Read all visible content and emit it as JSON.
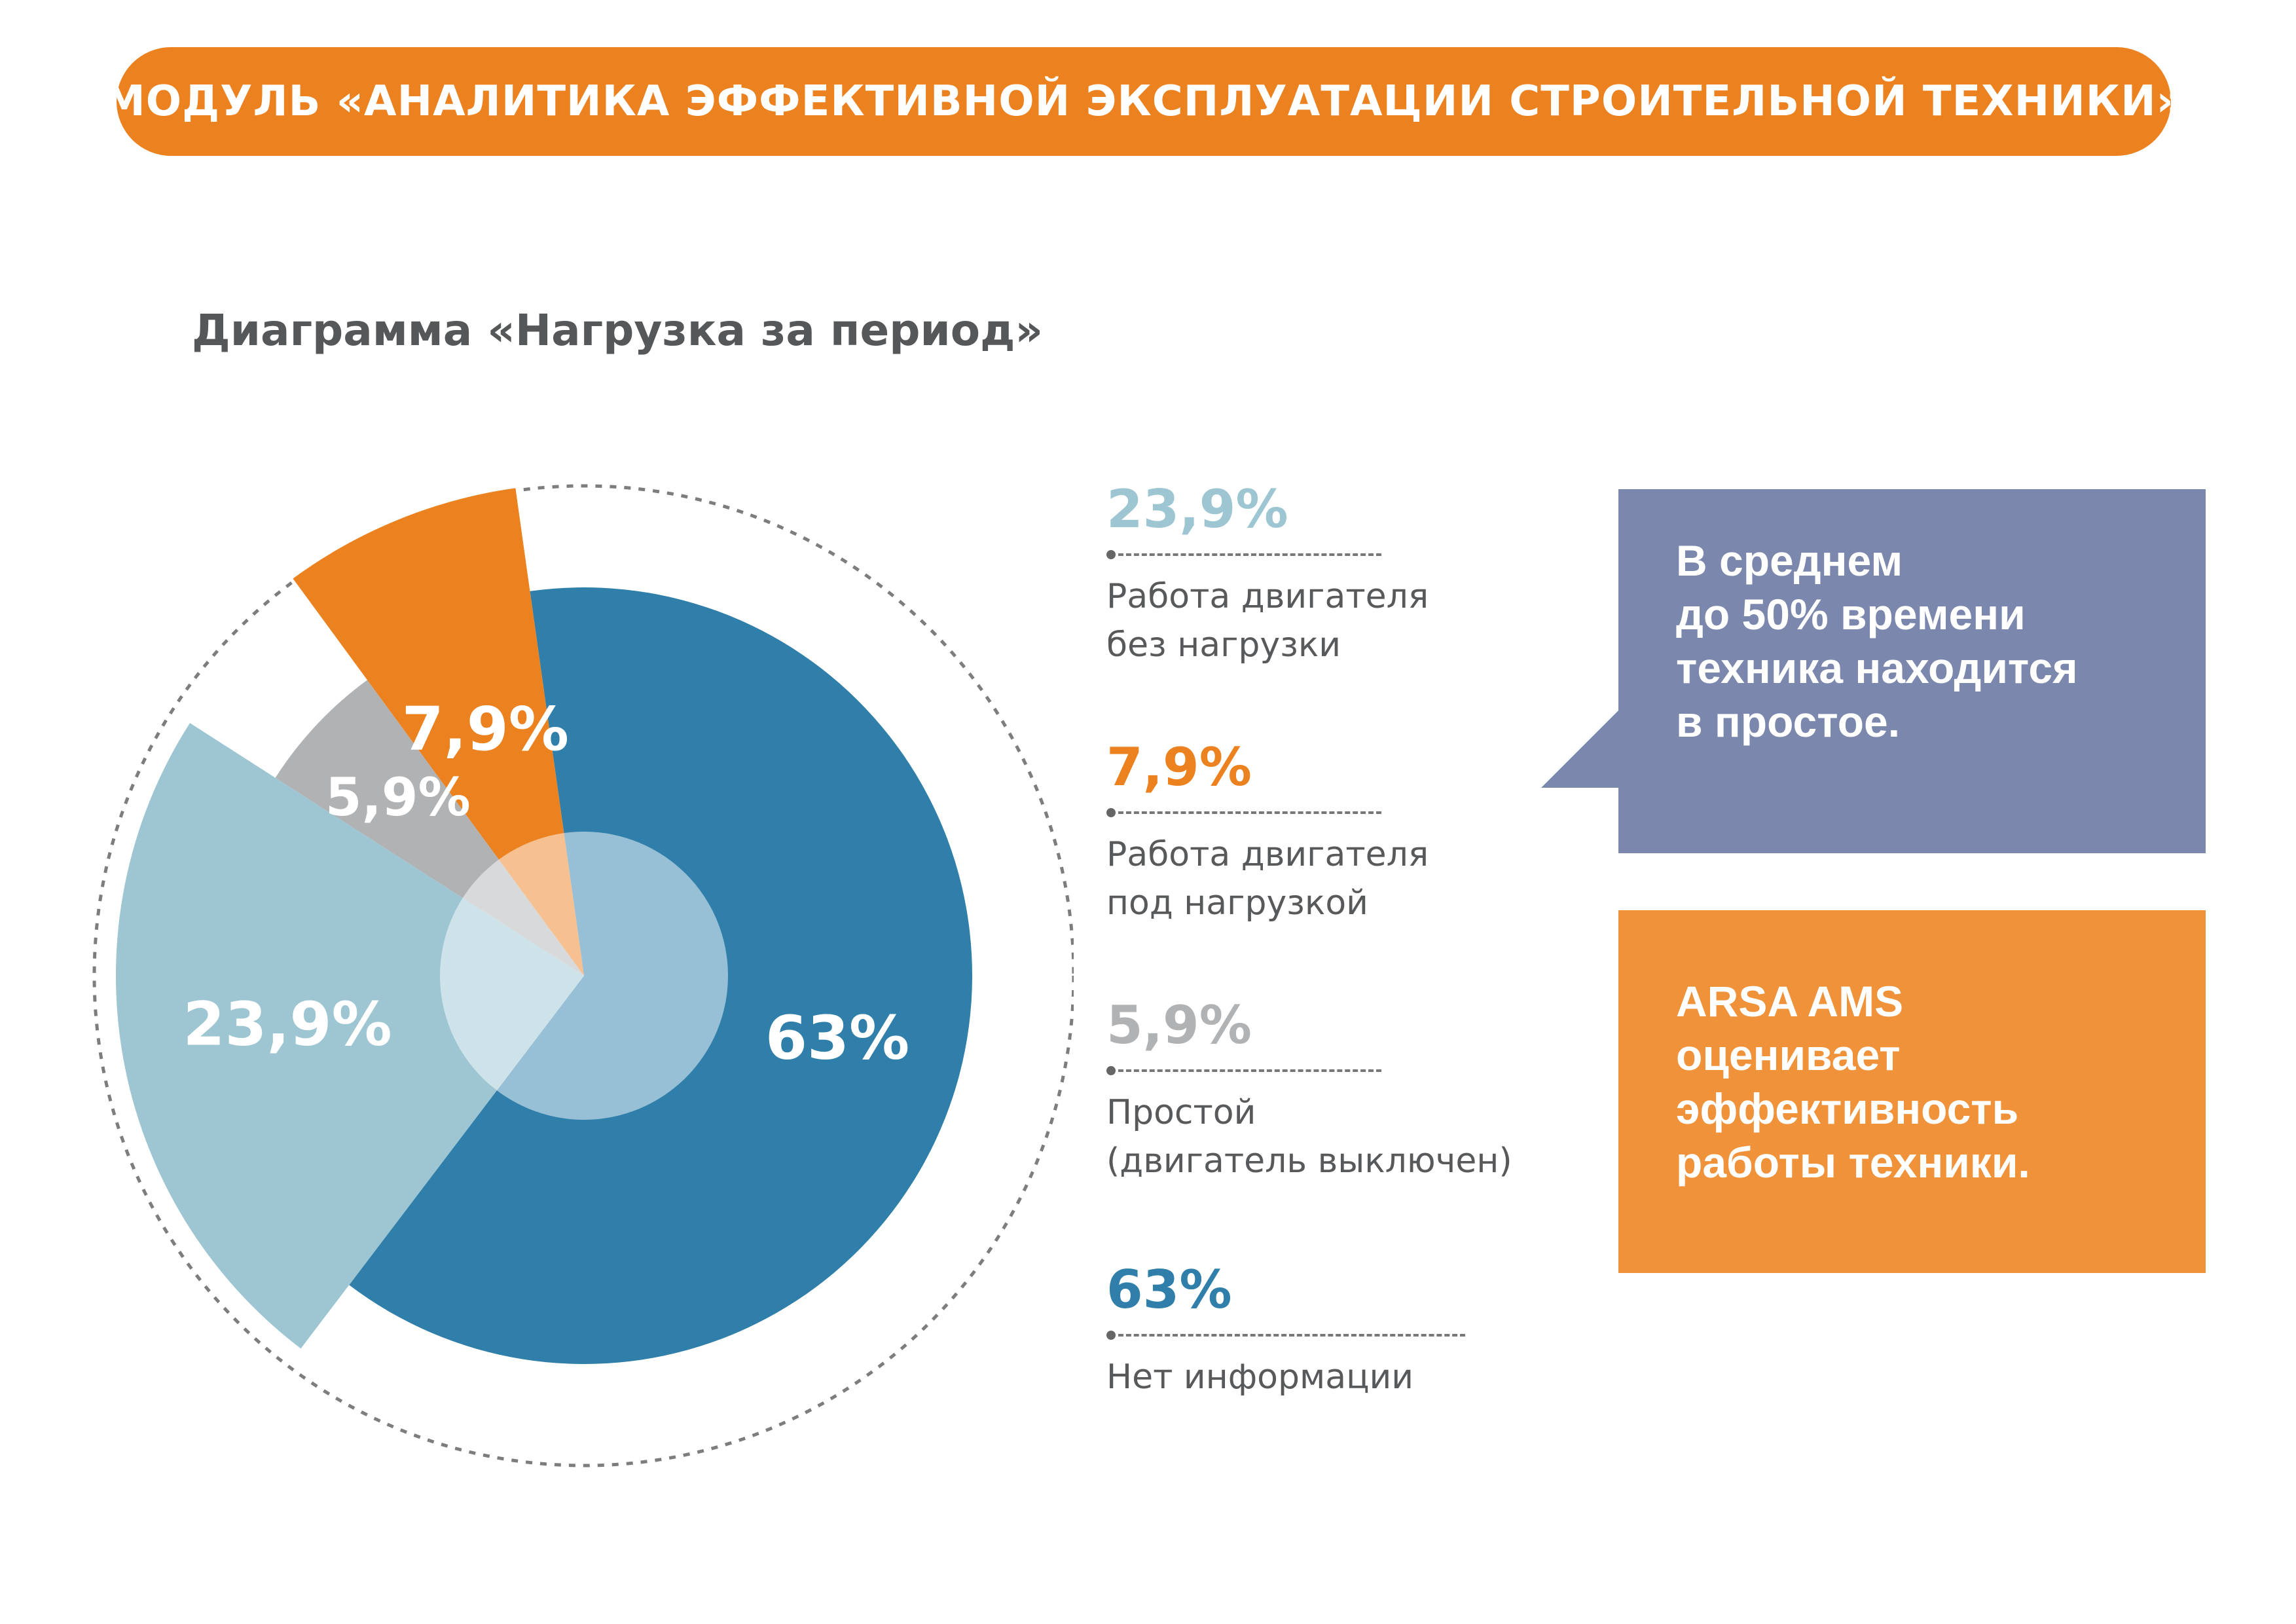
{
  "header": {
    "title": "МОДУЛЬ «АНАЛИТИКА ЭФФЕКТИВНОЙ ЭКСПЛУАТАЦИИ СТРОИТЕЛЬНОЙ ТЕХНИКИ»"
  },
  "chart_title": "Диаграмма «Нагрузка за период»",
  "chart_data": {
    "type": "pie",
    "title": "Диаграмма «Нагрузка за период»",
    "slices": [
      {
        "label": "Нет информации",
        "value": 63,
        "display": "63%",
        "color": "#2f7faa"
      },
      {
        "label": "Работа двигателя без нагрузки",
        "value": 23.9,
        "display": "23,9%",
        "color": "#9dc6d2"
      },
      {
        "label": "Простой (двигатель выключен)",
        "value": 5.9,
        "display": "5,9%",
        "color": "#b1b2b4"
      },
      {
        "label": "Работа двигателя под нагрузкой",
        "value": 7.9,
        "display": "7,9%",
        "color": "#ec8120"
      }
    ],
    "legend_position": "right"
  },
  "legend": [
    {
      "value": "23,9%",
      "label": "Работа двигателя\nбез нагрузки",
      "color": "#9dc6d2"
    },
    {
      "value": "7,9%",
      "label": "Работа двигателя\nпод нагрузкой",
      "color": "#ec8120"
    },
    {
      "value": "5,9%",
      "label": "Простой\n(двигатель выключен)",
      "color": "#b1b2b4"
    },
    {
      "value": "63%",
      "label": "Нет информации",
      "color": "#2f7faa"
    }
  ],
  "callout": {
    "text": "В среднем\nдо 50% времени\nтехника находится\nв простое."
  },
  "brand_box": {
    "text": "ARSA AMS\nоценивает\nэффективность\nработы техники."
  }
}
